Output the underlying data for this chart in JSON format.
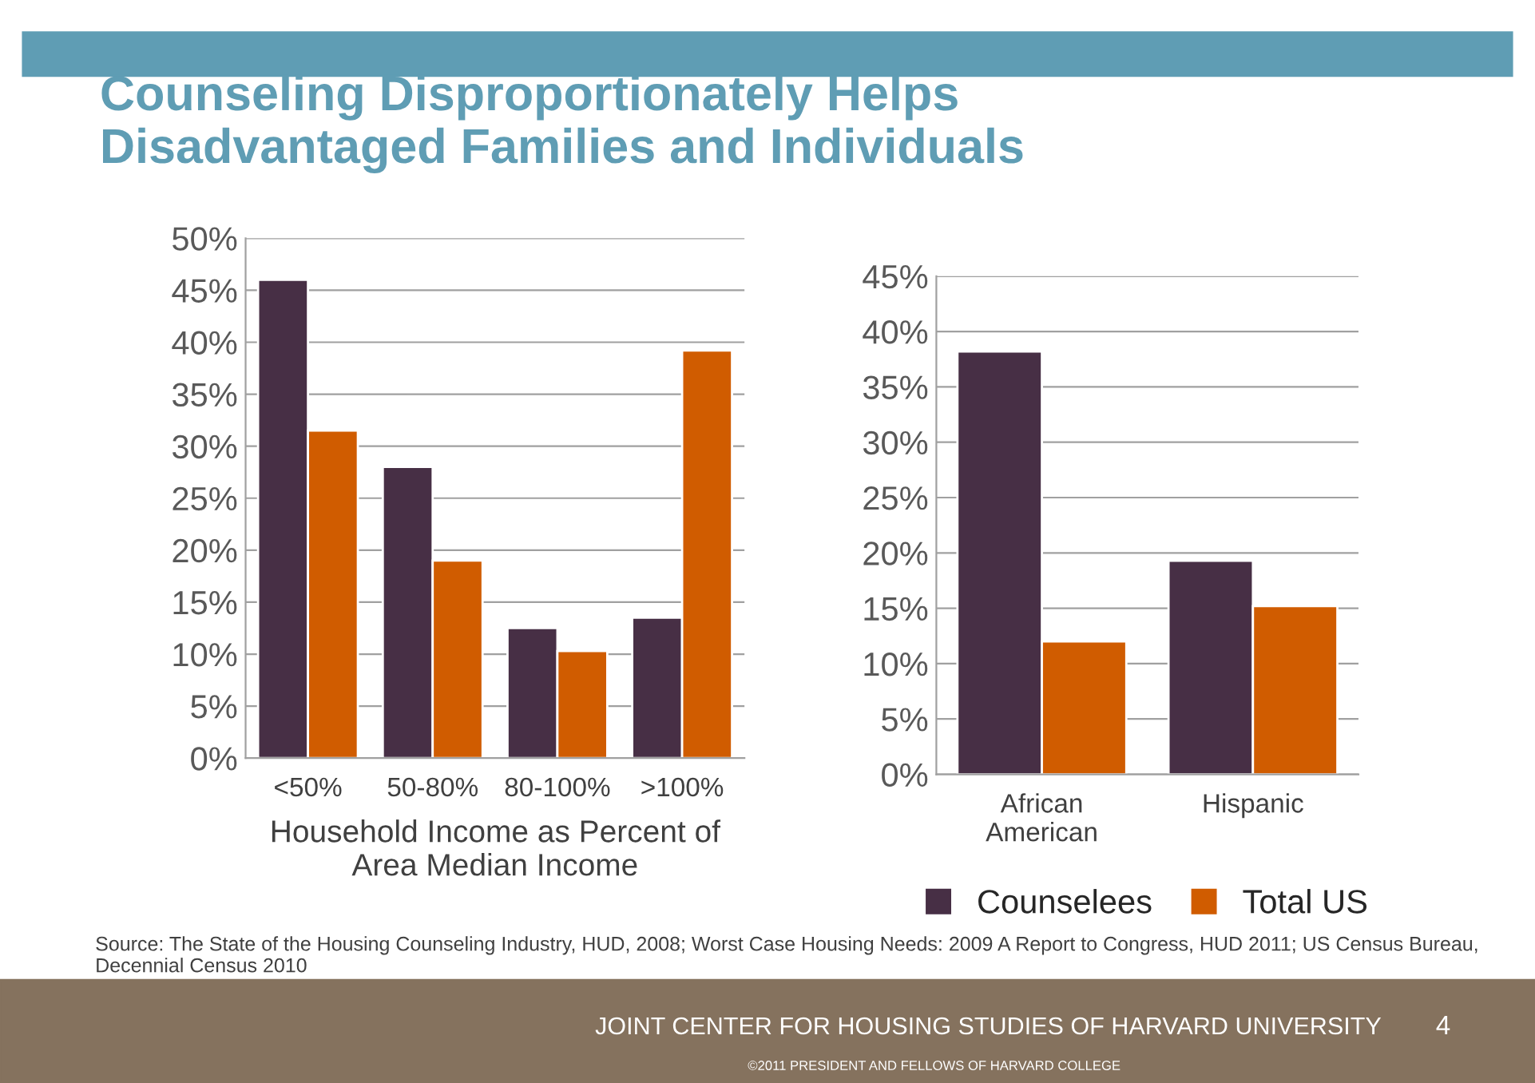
{
  "chart_data": [
    {
      "type": "bar",
      "title": "Counseling Disproportionately Helps\nDisadvantaged Families and Individuals",
      "xlabel": "Household Income as Percent of\nArea Median Income",
      "categories": [
        "<50%",
        "50-80%",
        "80-100%",
        ">100%"
      ],
      "series": [
        {
          "color": "#472f45",
          "values": [
            46,
            28,
            12.5,
            13.5
          ]
        },
        {
          "color": "#d05c00",
          "values": [
            31.5,
            19,
            10.3,
            39.2
          ]
        }
      ],
      "ylim": [
        0,
        50
      ],
      "yticks": [
        {
          "value": 0,
          "label": "0%"
        },
        {
          "value": 5,
          "label": "5%"
        },
        {
          "value": 10,
          "label": "10%"
        },
        {
          "value": 15,
          "label": "15%"
        },
        {
          "value": 20,
          "label": "20%"
        },
        {
          "value": 25,
          "label": "25%"
        },
        {
          "value": 30,
          "label": "30%"
        },
        {
          "value": 35,
          "label": "35%"
        },
        {
          "value": 40,
          "label": "40%"
        },
        {
          "value": 45,
          "label": "45%"
        },
        {
          "value": 50,
          "label": "50%"
        }
      ],
      "grid": "y"
    },
    {
      "type": "bar",
      "categories": [
        "African\nAmerican",
        "Hispanic"
      ],
      "series": [
        {
          "name": "Counselees",
          "color": "#472f45",
          "values": [
            38.2,
            19.3
          ]
        },
        {
          "name": "Total US",
          "color": "#d05c00",
          "values": [
            12,
            15.2
          ]
        }
      ],
      "ylim": [
        0,
        45
      ],
      "yticks": [
        {
          "value": 0,
          "label": "0%"
        },
        {
          "value": 5,
          "label": "5%"
        },
        {
          "value": 10,
          "label": "10%"
        },
        {
          "value": 15,
          "label": "15%"
        },
        {
          "value": 20,
          "label": "20%"
        },
        {
          "value": 25,
          "label": "25%"
        },
        {
          "value": 30,
          "label": "30%"
        },
        {
          "value": 35,
          "label": "35%"
        },
        {
          "value": 40,
          "label": "40%"
        },
        {
          "value": 45,
          "label": "45%"
        }
      ],
      "grid": "y",
      "legend": "bottom",
      "annotations": [
        "Source: The State of the Housing Counseling Industry, HUD, 2008; Worst Case Housing Needs: 2009 A Report to Congress, HUD 2011; US Census Bureau, Decennial Census 2010",
        "JOINT CENTER FOR HOUSING STUDIES OF HARVARD UNIVERSITY",
        "4",
        "©2011 PRESIDENT AND FELLOWS OF HARVARD COLLEGE"
      ]
    }
  ]
}
